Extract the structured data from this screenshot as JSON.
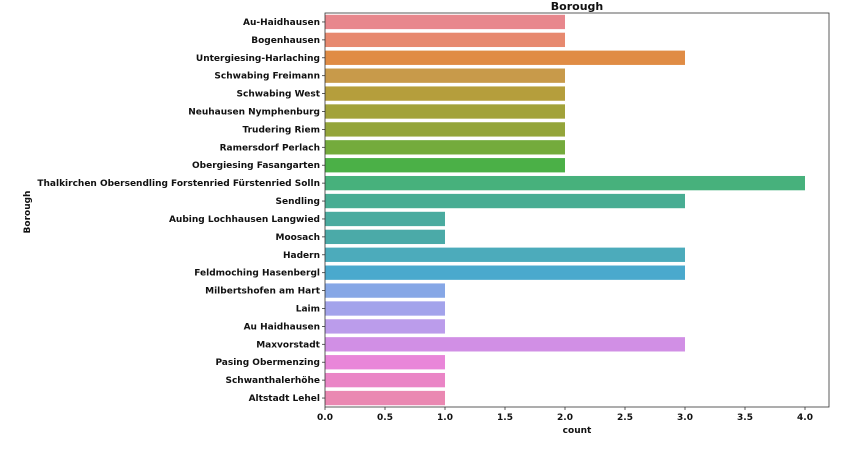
{
  "chart_data": {
    "type": "bar",
    "orientation": "horizontal",
    "title": "Borough",
    "xlabel": "count",
    "ylabel": "Borough",
    "xlim": [
      0,
      4.2
    ],
    "xticks": [
      "0.0",
      "0.5",
      "1.0",
      "1.5",
      "2.0",
      "2.5",
      "3.0",
      "3.5",
      "4.0"
    ],
    "grid": false,
    "categories": [
      "Au-Haidhausen",
      "Bogenhausen",
      "Untergiesing-Harlaching",
      "Schwabing Freimann",
      "Schwabing West",
      "Neuhausen Nymphenburg",
      "Trudering Riem",
      "Ramersdorf Perlach",
      "Obergiesing Fasangarten",
      "Thalkirchen Obersendling Forstenried Fürstenried Solln",
      "Sendling",
      "Aubing Lochhausen Langwied",
      "Moosach",
      "Hadern",
      "Feldmoching Hasenbergl",
      "Milbertshofen am Hart",
      "Laim",
      "Au Haidhausen",
      "Maxvorstadt",
      "Pasing Obermenzing",
      "Schwanthalerhöhe",
      "Altstadt Lehel"
    ],
    "values": [
      2,
      2,
      3,
      2,
      2,
      2,
      2,
      2,
      2,
      4,
      3,
      1,
      1,
      3,
      3,
      1,
      1,
      1,
      3,
      1,
      1,
      1
    ],
    "colors": [
      "#e8878d",
      "#e7896f",
      "#e08c45",
      "#c89a4a",
      "#b59e3c",
      "#a2a23a",
      "#94a53a",
      "#74ab3c",
      "#4bb047",
      "#47b17c",
      "#48ad93",
      "#4aab9f",
      "#4baaa8",
      "#4cabbb",
      "#4aa9cd",
      "#86a7e6",
      "#a3a3eb",
      "#bb9ceb",
      "#d18fe5",
      "#e986d9",
      "#ea85c6",
      "#ea88b2"
    ]
  }
}
